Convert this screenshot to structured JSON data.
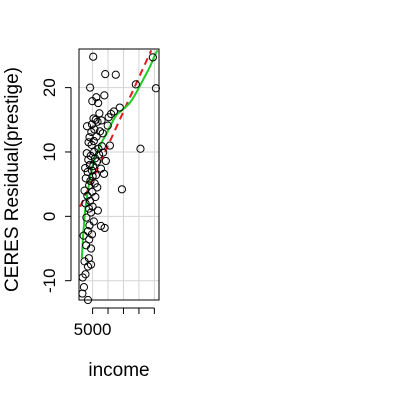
{
  "chart_data": {
    "type": "scatter",
    "title": "",
    "xlabel": "income",
    "ylabel": "CERES Residual(prestige)",
    "xlim": [
      600,
      26500
    ],
    "ylim": [
      -13,
      26
    ],
    "x_ticks": [
      5000
    ],
    "x_tick_labels": [
      "5000"
    ],
    "y_ticks": [
      -10,
      0,
      10,
      20
    ],
    "y_tick_labels": [
      "-10",
      "0",
      "10",
      "20"
    ],
    "grid": true,
    "legend": "none",
    "colors": {
      "points": "#000000",
      "fit": "#e41a1c",
      "smooth": "#22cc22",
      "grid": "#d3d3d3"
    },
    "points": [
      [
        5200,
        24.8
      ],
      [
        24500,
        24.7
      ],
      [
        9100,
        22.1
      ],
      [
        12500,
        22.0
      ],
      [
        25500,
        19.9
      ],
      [
        4200,
        20.0
      ],
      [
        19000,
        20.5
      ],
      [
        6200,
        18.5
      ],
      [
        8800,
        18.8
      ],
      [
        4900,
        17.9
      ],
      [
        6800,
        17.6
      ],
      [
        13800,
        16.9
      ],
      [
        11900,
        16.3
      ],
      [
        11000,
        15.9
      ],
      [
        10200,
        15.4
      ],
      [
        7900,
        14.9
      ],
      [
        5300,
        15.2
      ],
      [
        6600,
        14.7
      ],
      [
        4800,
        14.3
      ],
      [
        3200,
        14.0
      ],
      [
        9900,
        14.1
      ],
      [
        5600,
        13.5
      ],
      [
        4600,
        13.1
      ],
      [
        7400,
        13.2
      ],
      [
        8300,
        12.9
      ],
      [
        4000,
        12.3
      ],
      [
        6300,
        12.4
      ],
      [
        5400,
        11.7
      ],
      [
        3700,
        11.5
      ],
      [
        4700,
        11.1
      ],
      [
        8000,
        10.9
      ],
      [
        10600,
        11.0
      ],
      [
        6900,
        10.5
      ],
      [
        5500,
        10.0
      ],
      [
        3100,
        9.8
      ],
      [
        7100,
        9.6
      ],
      [
        8400,
        9.9
      ],
      [
        4400,
        9.4
      ],
      [
        5800,
        9.0
      ],
      [
        3600,
        8.8
      ],
      [
        6400,
        8.5
      ],
      [
        9300,
        8.6
      ],
      [
        4100,
        8.0
      ],
      [
        5200,
        7.8
      ],
      [
        2600,
        7.5
      ],
      [
        7700,
        7.4
      ],
      [
        4800,
        7.1
      ],
      [
        3400,
        6.9
      ],
      [
        6100,
        6.4
      ],
      [
        5000,
        6.2
      ],
      [
        8700,
        6.6
      ],
      [
        2800,
        5.9
      ],
      [
        4300,
        5.5
      ],
      [
        5700,
        5.1
      ],
      [
        3900,
        4.8
      ],
      [
        6500,
        4.5
      ],
      [
        14500,
        4.2
      ],
      [
        2400,
        4.0
      ],
      [
        4900,
        3.8
      ],
      [
        3300,
        3.2
      ],
      [
        5900,
        3.0
      ],
      [
        4200,
        2.4
      ],
      [
        2700,
        2.0
      ],
      [
        5000,
        1.5
      ],
      [
        3800,
        1.2
      ],
      [
        6700,
        0.9
      ],
      [
        4500,
        0.6
      ],
      [
        3000,
        -0.2
      ],
      [
        5400,
        -0.8
      ],
      [
        4000,
        -1.4
      ],
      [
        8900,
        -1.8
      ],
      [
        7700,
        -1.5
      ],
      [
        3500,
        -2.3
      ],
      [
        4800,
        -2.8
      ],
      [
        2100,
        -3.0
      ],
      [
        3900,
        -3.6
      ],
      [
        2900,
        -4.5
      ],
      [
        4500,
        -5.0
      ],
      [
        3800,
        -6.5
      ],
      [
        2400,
        -7.0
      ],
      [
        4500,
        -7.5
      ],
      [
        3500,
        -7.8
      ],
      [
        2700,
        -9.0
      ],
      [
        1800,
        -9.5
      ],
      [
        2200,
        -11.0
      ],
      [
        1700,
        -12.0
      ],
      [
        3500,
        -13.0
      ],
      [
        20500,
        10.5
      ],
      [
        6000,
        15.0
      ],
      [
        7200,
        16.0
      ]
    ],
    "linear_fit": {
      "name": "",
      "x0": 1000,
      "y0": 1.5,
      "x1": 24000,
      "y1": 25.8
    },
    "smooth_curve": [
      [
        1500,
        -6.5
      ],
      [
        2000,
        -2.5
      ],
      [
        2500,
        0.5
      ],
      [
        3000,
        2.5
      ],
      [
        4000,
        5.5
      ],
      [
        5000,
        7.8
      ],
      [
        6000,
        9.3
      ],
      [
        7000,
        10.6
      ],
      [
        8000,
        11.6
      ],
      [
        9000,
        12.4
      ],
      [
        10000,
        13.3
      ],
      [
        11000,
        14.3
      ],
      [
        12000,
        15.2
      ],
      [
        13000,
        15.9
      ],
      [
        14000,
        16.3
      ],
      [
        15000,
        16.7
      ],
      [
        16000,
        17.1
      ],
      [
        17000,
        17.6
      ],
      [
        18000,
        18.3
      ],
      [
        19000,
        19.1
      ],
      [
        20000,
        20.0
      ],
      [
        21000,
        20.9
      ],
      [
        22000,
        21.8
      ],
      [
        23000,
        22.7
      ],
      [
        24000,
        23.7
      ],
      [
        25000,
        24.9
      ],
      [
        26000,
        25.8
      ]
    ]
  }
}
